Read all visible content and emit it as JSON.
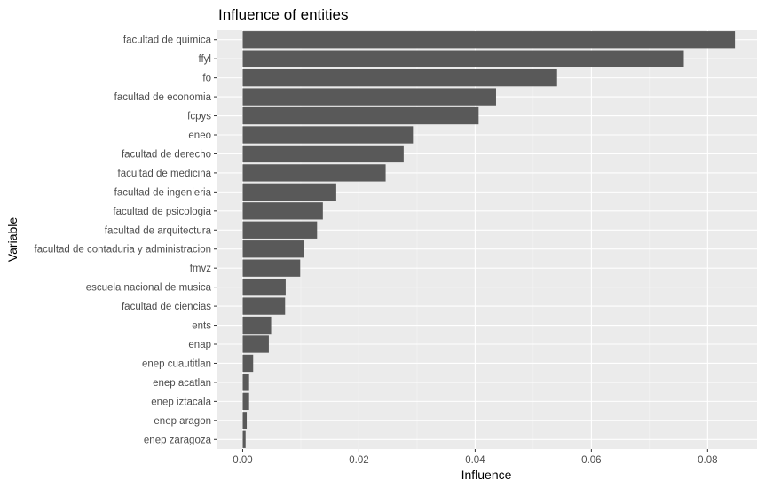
{
  "chart_data": {
    "type": "bar",
    "orientation": "horizontal",
    "title": "Influence of entities",
    "xlabel": "Influence",
    "ylabel": "Variable",
    "xlim": [
      -0.0045,
      0.0885
    ],
    "x_ticks": [
      0.0,
      0.02,
      0.04,
      0.06,
      0.08
    ],
    "x_tick_labels": [
      "0.00",
      "0.02",
      "0.04",
      "0.06",
      "0.08"
    ],
    "grid": true,
    "legend": "none",
    "colors": {
      "bar": "#595959",
      "panel": "#ebebeb",
      "grid_major": "#ffffff",
      "grid_minor": "#f5f5f5"
    },
    "categories": [
      "facultad de quimica",
      "ffyl",
      "fo",
      "facultad de economia",
      "fcpys",
      "eneo",
      "facultad de derecho",
      "facultad de medicina",
      "facultad de ingenieria",
      "facultad de psicologia",
      "facultad de arquitectura",
      "facultad de contaduria y administracion",
      "fmvz",
      "escuela nacional de musica",
      "facultad de ciencias",
      "ents",
      "enap",
      "enep cuautitlan",
      "enep acatlan",
      "enep iztacala",
      "enep aragon",
      "enep zaragoza"
    ],
    "values": [
      0.0847,
      0.0759,
      0.0541,
      0.0436,
      0.0406,
      0.0293,
      0.0277,
      0.0246,
      0.0161,
      0.0138,
      0.0128,
      0.0106,
      0.0099,
      0.0074,
      0.0073,
      0.0049,
      0.0045,
      0.0018,
      0.0011,
      0.0011,
      0.0007,
      0.0005
    ]
  }
}
